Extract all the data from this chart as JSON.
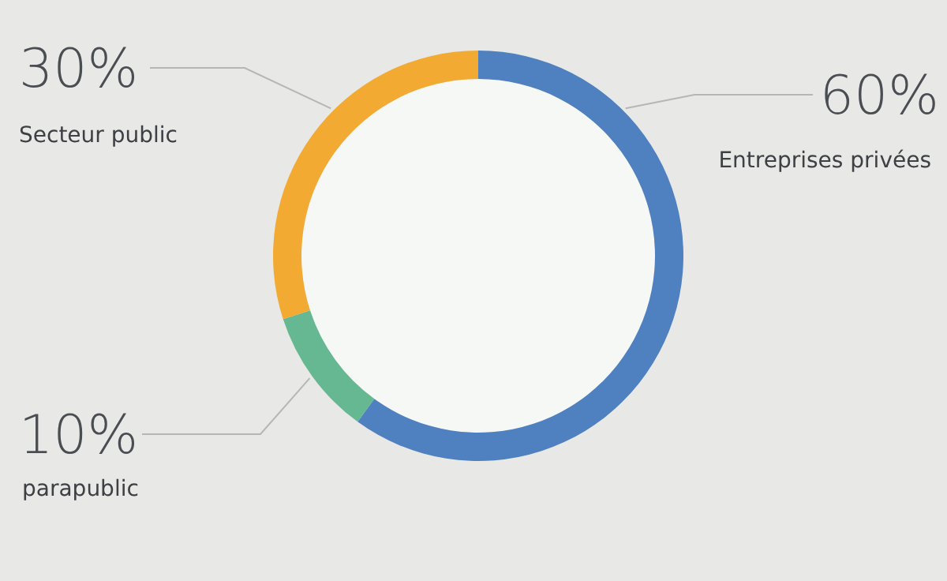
{
  "chart_data": {
    "type": "donut",
    "categories": [
      "Entreprises privées",
      "parapublic",
      "Secteur public"
    ],
    "values": [
      60,
      10,
      30
    ],
    "colors": [
      "#4f80c0",
      "#65b891",
      "#f2aa33"
    ],
    "value_labels": [
      "60%",
      "10%",
      "30%"
    ]
  }
}
